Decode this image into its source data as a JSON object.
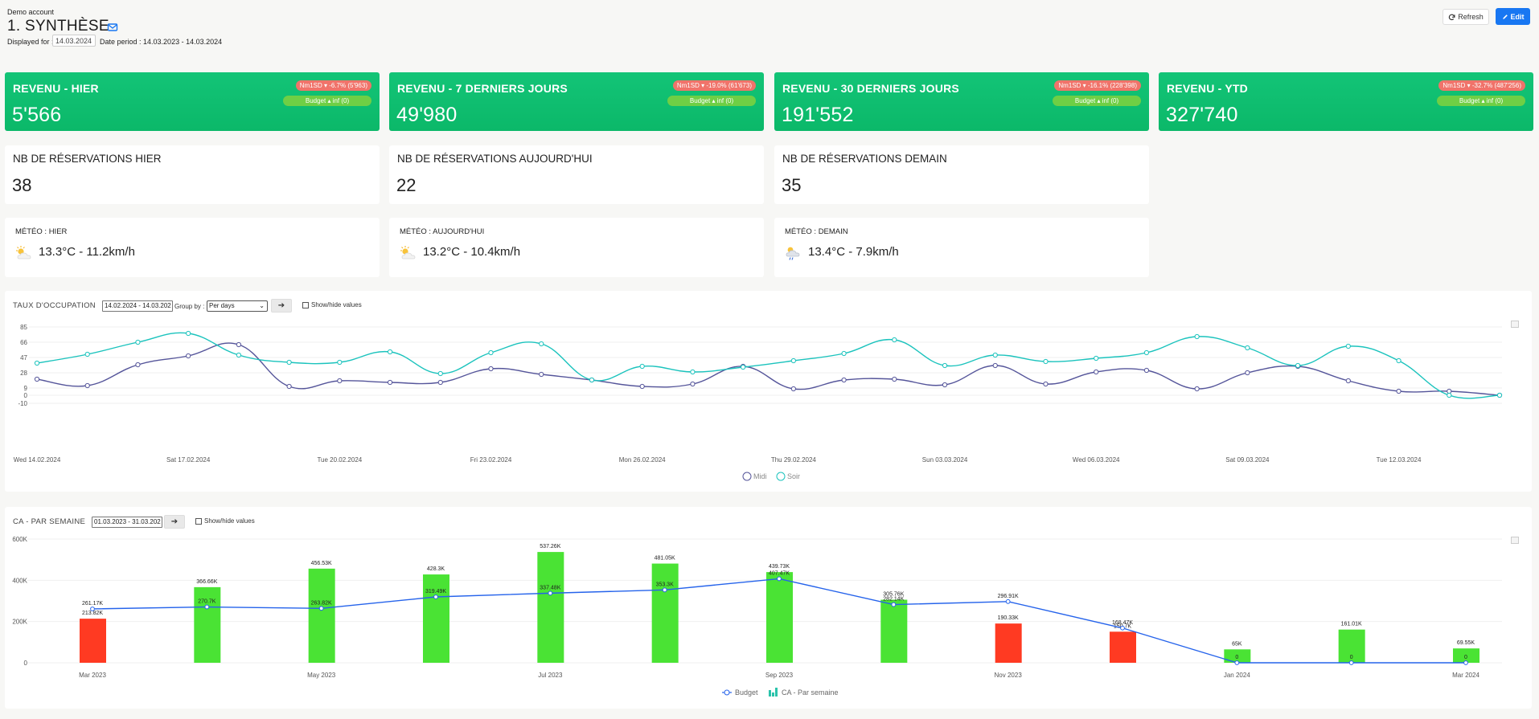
{
  "header": {
    "account": "Demo account",
    "title": "1. SYNTHÈSE",
    "displayed_for_label": "Displayed for :",
    "displayed_date": "14.03.2024",
    "date_period": "Date period : 14.03.2023 - 14.03.2024",
    "refresh_label": "Refresh",
    "edit_label": "Edit"
  },
  "revenue_cards": [
    {
      "label": "REVENU - HIER",
      "value": "5'566",
      "badge_red": "Nm1SD ▾ -6.7% (5'963)",
      "badge_green": "Budget ▴ inf (0)"
    },
    {
      "label": "REVENU - 7 DERNIERS JOURS",
      "value": "49'980",
      "badge_red": "Nm1SD ▾ -19.0% (61'673)",
      "badge_green": "Budget ▴ inf (0)"
    },
    {
      "label": "REVENU - 30 DERNIERS JOURS",
      "value": "191'552",
      "badge_red": "Nm1SD ▾ -16.1% (228'398)",
      "badge_green": "Budget ▴ inf (0)"
    },
    {
      "label": "REVENU - YTD",
      "value": "327'740",
      "badge_red": "Nm1SD ▾ -32.7% (487'256)",
      "badge_green": "Budget ▴ inf (0)"
    }
  ],
  "reservation_cards": [
    {
      "label": "NB DE RÉSERVATIONS HIER",
      "value": "38"
    },
    {
      "label": "NB DE RÉSERVATIONS AUJOURD'HUI",
      "value": "22"
    },
    {
      "label": "NB DE RÉSERVATIONS DEMAIN",
      "value": "35"
    }
  ],
  "weather_cards": [
    {
      "label": "MÉTÉO : HIER",
      "value": "13.3°C - 11.2km/h",
      "icon": "sun-cloud-icon"
    },
    {
      "label": "MÉTÉO : AUJOURD'HUI",
      "value": "13.2°C - 10.4km/h",
      "icon": "sun-cloud-icon"
    },
    {
      "label": "MÉTÉO : DEMAIN",
      "value": "13.4°C - 7.9km/h",
      "icon": "rain-cloud-icon"
    }
  ],
  "occupancy_panel": {
    "title": "TAUX D'OCCUPATION",
    "date_range": "14.02.2024 - 14.03.202",
    "group_by_label": "Group by :",
    "group_by_value": "Per days",
    "show_values_label": "Show/hide values"
  },
  "ca_panel": {
    "title": "CA - PAR SEMAINE",
    "date_range": "01.03.2023 - 31.03.202",
    "show_values_label": "Show/hide values"
  },
  "colors": {
    "green_card": "#12c273",
    "badge_red": "#f0736a",
    "badge_green": "#6fcf45",
    "midi": "#55559a",
    "soir": "#1bc3bd",
    "bar_green": "#4ae334",
    "bar_red": "#ff3a22",
    "budget_line": "#2563eb"
  },
  "chart_data": [
    {
      "type": "line",
      "title": "TAUX D'OCCUPATION",
      "ylim": [
        -10,
        85
      ],
      "y_ticks": [
        -10,
        0,
        9,
        28,
        47,
        66,
        85
      ],
      "x_tick_labels": [
        "Wed 14.02.2024",
        "Sat 17.02.2024",
        "Tue 20.02.2024",
        "Fri 23.02.2024",
        "Mon 26.02.2024",
        "Thu 29.02.2024",
        "Sun 03.03.2024",
        "Wed 06.03.2024",
        "Sat 09.03.2024",
        "Tue 12.03.2024"
      ],
      "x": [
        "14.02.2024",
        "15.02.2024",
        "16.02.2024",
        "17.02.2024",
        "18.02.2024",
        "19.02.2024",
        "20.02.2024",
        "21.02.2024",
        "22.02.2024",
        "23.02.2024",
        "24.02.2024",
        "25.02.2024",
        "26.02.2024",
        "27.02.2024",
        "28.02.2024",
        "29.02.2024",
        "01.03.2024",
        "02.03.2024",
        "03.03.2024",
        "04.03.2024",
        "05.03.2024",
        "06.03.2024",
        "07.03.2024",
        "08.03.2024",
        "09.03.2024",
        "10.03.2024",
        "11.03.2024",
        "12.03.2024",
        "13.03.2024",
        "14.03.2024"
      ],
      "legend": "bottom",
      "series": [
        {
          "name": "Midi",
          "values": [
            20,
            12,
            38,
            49,
            63,
            11,
            18,
            16,
            16,
            33,
            26,
            19,
            11,
            14,
            36,
            8,
            19,
            20,
            13,
            37,
            14,
            29,
            31,
            8,
            28,
            36,
            18,
            5,
            5,
            0
          ]
        },
        {
          "name": "Soir",
          "values": [
            40,
            51,
            66,
            77,
            50,
            41,
            41,
            54,
            27,
            53,
            64,
            19,
            36,
            29,
            35,
            43,
            52,
            69,
            37,
            50,
            42,
            46,
            53,
            73,
            59,
            37,
            61,
            43,
            0,
            0
          ]
        }
      ]
    },
    {
      "type": "bar",
      "title": "CA - PAR SEMAINE",
      "ylim": [
        0,
        600000
      ],
      "y_ticks": [
        "0",
        "200K",
        "400K",
        "600K"
      ],
      "x_tick_labels": [
        "Mar 2023",
        "May 2023",
        "Jul 2023",
        "Sep 2023",
        "Nov 2023",
        "Jan 2024",
        "Mar 2024"
      ],
      "legend": "bottom",
      "categories": [
        "Mar 2023",
        "Apr 2023",
        "May 2023",
        "Jun 2023",
        "Jul 2023",
        "Aug 2023",
        "Sep 2023",
        "Oct 2023",
        "Nov 2023",
        "Dec 2023",
        "Jan 2024",
        "Feb 2024",
        "Mar 2024"
      ],
      "series": [
        {
          "name": "CA - Par semaine",
          "values": [
            213820,
            366660,
            456530,
            428300,
            537260,
            481050,
            439730,
            305760,
            190330,
            150700,
            65000,
            161010,
            69550
          ],
          "labels": [
            "213.82K",
            "366.66K",
            "456.53K",
            "428.3K",
            "537.26K",
            "481.05K",
            "439.73K",
            "305.76K",
            "190.33K",
            "150.7K",
            "65K",
            "161.01K",
            "69.55K"
          ],
          "below_budget": [
            true,
            false,
            false,
            false,
            false,
            false,
            false,
            false,
            true,
            true,
            false,
            false,
            false
          ]
        },
        {
          "name": "Budget",
          "values": [
            261170,
            270700,
            263820,
            319490,
            337480,
            353300,
            407470,
            282140,
            296910,
            168470,
            0,
            0,
            0
          ],
          "labels": [
            "261.17K",
            "270.7K",
            "263.82K",
            "319.49K",
            "337.48K",
            "353.3K",
            "407.47K",
            "282.14K",
            "296.91K",
            "168.47K",
            "0",
            "0",
            "0"
          ]
        }
      ]
    }
  ]
}
